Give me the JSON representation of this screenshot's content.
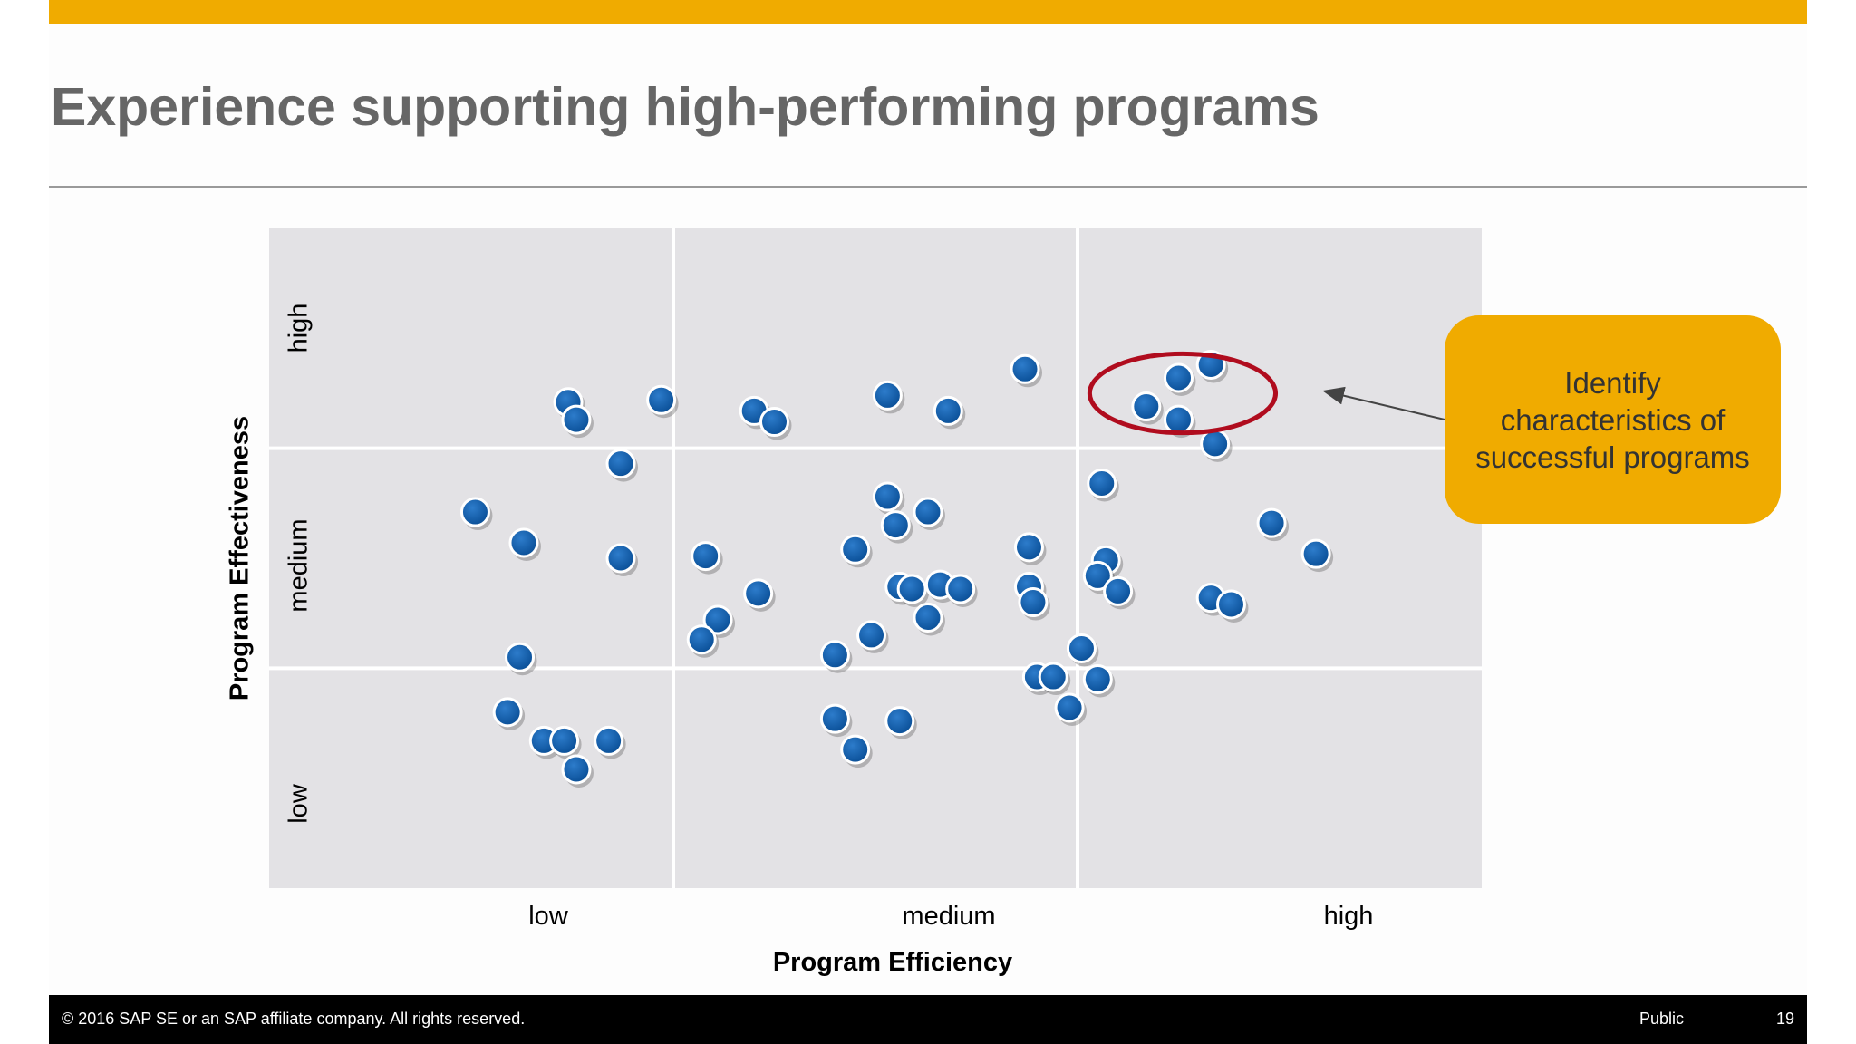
{
  "slide": {
    "title": "Experience supporting high-performing programs",
    "callout": "Identify characteristics of successful programs",
    "footer": {
      "copyright": "© 2016 SAP SE or an SAP affiliate company. All rights reserved.",
      "classification": "Public",
      "page_number": "19"
    }
  },
  "colors": {
    "accent_bar": "#f0ab00",
    "plot_background": "#e3e2e5",
    "point_fill": "#0a5aa8",
    "highlight_ellipse": "#b00c1e",
    "callout_fill": "#f0ab00"
  },
  "chart_data": {
    "type": "scatter",
    "xlabel": "Program Efficiency",
    "ylabel": "Program Effectiveness",
    "x_ticks": [
      "low",
      "medium",
      "high"
    ],
    "y_ticks": [
      "low",
      "medium",
      "high"
    ],
    "xlim": [
      0,
      3
    ],
    "ylim": [
      0,
      3
    ],
    "grid": true,
    "highlight": {
      "x_center": 2.26,
      "y_center": 2.25,
      "x_radius": 0.23,
      "y_radius": 0.18
    },
    "points": [
      {
        "x": 0.51,
        "y": 1.71
      },
      {
        "x": 0.63,
        "y": 1.57
      },
      {
        "x": 0.62,
        "y": 1.05
      },
      {
        "x": 0.59,
        "y": 0.8
      },
      {
        "x": 0.68,
        "y": 0.67
      },
      {
        "x": 0.73,
        "y": 0.67
      },
      {
        "x": 0.76,
        "y": 0.54
      },
      {
        "x": 0.84,
        "y": 0.67
      },
      {
        "x": 0.74,
        "y": 2.21
      },
      {
        "x": 0.76,
        "y": 2.13
      },
      {
        "x": 0.87,
        "y": 1.93
      },
      {
        "x": 0.87,
        "y": 1.5
      },
      {
        "x": 0.97,
        "y": 2.22
      },
      {
        "x": 1.08,
        "y": 1.51
      },
      {
        "x": 1.2,
        "y": 2.17
      },
      {
        "x": 1.25,
        "y": 2.12
      },
      {
        "x": 1.21,
        "y": 1.34
      },
      {
        "x": 1.11,
        "y": 1.22
      },
      {
        "x": 1.07,
        "y": 1.13
      },
      {
        "x": 1.45,
        "y": 1.54
      },
      {
        "x": 1.4,
        "y": 1.06
      },
      {
        "x": 1.49,
        "y": 1.15
      },
      {
        "x": 1.53,
        "y": 1.78
      },
      {
        "x": 1.55,
        "y": 1.65
      },
      {
        "x": 1.63,
        "y": 1.71
      },
      {
        "x": 1.56,
        "y": 1.37
      },
      {
        "x": 1.59,
        "y": 1.36
      },
      {
        "x": 1.66,
        "y": 1.38
      },
      {
        "x": 1.71,
        "y": 1.36
      },
      {
        "x": 1.63,
        "y": 1.23
      },
      {
        "x": 1.53,
        "y": 2.24
      },
      {
        "x": 1.68,
        "y": 2.17
      },
      {
        "x": 1.87,
        "y": 2.36
      },
      {
        "x": 1.4,
        "y": 0.77
      },
      {
        "x": 1.45,
        "y": 0.63
      },
      {
        "x": 1.56,
        "y": 0.76
      },
      {
        "x": 1.88,
        "y": 1.55
      },
      {
        "x": 1.88,
        "y": 1.37
      },
      {
        "x": 1.89,
        "y": 1.3
      },
      {
        "x": 2.01,
        "y": 1.09
      },
      {
        "x": 1.9,
        "y": 0.96
      },
      {
        "x": 1.94,
        "y": 0.96
      },
      {
        "x": 1.98,
        "y": 0.82
      },
      {
        "x": 2.05,
        "y": 0.95
      },
      {
        "x": 2.06,
        "y": 1.84
      },
      {
        "x": 2.07,
        "y": 1.49
      },
      {
        "x": 2.05,
        "y": 1.42
      },
      {
        "x": 2.1,
        "y": 1.35
      },
      {
        "x": 2.17,
        "y": 2.19
      },
      {
        "x": 2.25,
        "y": 2.13
      },
      {
        "x": 2.25,
        "y": 2.32
      },
      {
        "x": 2.33,
        "y": 2.38
      },
      {
        "x": 2.34,
        "y": 2.02
      },
      {
        "x": 2.33,
        "y": 1.32
      },
      {
        "x": 2.38,
        "y": 1.29
      },
      {
        "x": 2.48,
        "y": 1.66
      },
      {
        "x": 2.59,
        "y": 1.52
      }
    ]
  }
}
